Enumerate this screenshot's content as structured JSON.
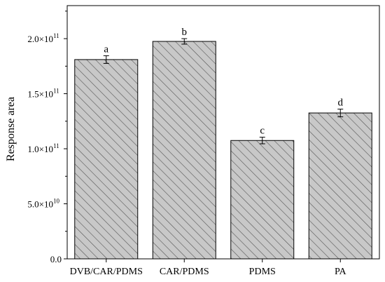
{
  "chart_data": {
    "type": "bar",
    "categories": [
      "DVB/CAR/PDMS",
      "CAR/PDMS",
      "PDMS",
      "PA"
    ],
    "values": [
      181000000000,
      197500000000,
      107500000000,
      132500000000
    ],
    "errors": [
      3500000000,
      2500000000,
      3000000000,
      3500000000
    ],
    "letters": [
      "a",
      "b",
      "c",
      "d"
    ],
    "xlabel": "",
    "ylabel": "Response area",
    "ylim": [
      0,
      230000000000
    ],
    "yticks": [
      {
        "value": 0,
        "mantissa": "0.0",
        "exp": ""
      },
      {
        "value": 50000000000,
        "mantissa": "5.0×10",
        "exp": "10"
      },
      {
        "value": 100000000000,
        "mantissa": "1.0×10",
        "exp": "11"
      },
      {
        "value": 150000000000,
        "mantissa": "1.5×10",
        "exp": "11"
      },
      {
        "value": 200000000000,
        "mantissa": "2.0×10",
        "exp": "11"
      }
    ],
    "bar_fill": "#c8c8c8",
    "hatch_color": "#555555",
    "grid": false
  }
}
